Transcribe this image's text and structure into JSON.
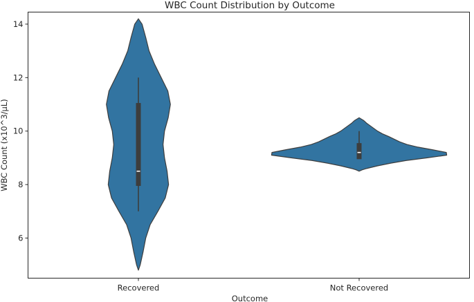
{
  "chart_data": {
    "type": "violin",
    "title": "WBC Count Distribution by Outcome",
    "xlabel": "Outcome",
    "ylabel": "WBC Count (x10^3/µL)",
    "categories": [
      "Recovered",
      "Not Recovered"
    ],
    "ylim": [
      4.5,
      14.45
    ],
    "yticks": [
      6,
      8,
      10,
      12,
      14
    ],
    "grid": false,
    "colors": {
      "violin_fill": "#3274a1",
      "outline": "#3d3d3d",
      "box": "#3d3d3d",
      "median": "#ffffff"
    },
    "series": [
      {
        "category": "Recovered",
        "density_profile": [
          [
            4.8,
            0.0
          ],
          [
            5.0,
            0.05
          ],
          [
            5.5,
            0.13
          ],
          [
            6.0,
            0.2
          ],
          [
            6.5,
            0.32
          ],
          [
            7.0,
            0.53
          ],
          [
            7.5,
            0.73
          ],
          [
            8.0,
            0.82
          ],
          [
            8.5,
            0.78
          ],
          [
            9.0,
            0.71
          ],
          [
            9.5,
            0.67
          ],
          [
            10.0,
            0.71
          ],
          [
            10.5,
            0.81
          ],
          [
            11.0,
            0.87
          ],
          [
            11.5,
            0.8
          ],
          [
            12.0,
            0.62
          ],
          [
            12.5,
            0.44
          ],
          [
            13.0,
            0.29
          ],
          [
            13.5,
            0.2
          ],
          [
            14.0,
            0.1
          ],
          [
            14.2,
            0.0
          ]
        ],
        "whisker": [
          7.0,
          12.0
        ],
        "q1": 7.95,
        "median": 8.5,
        "q3": 11.05
      },
      {
        "category": "Not Recovered",
        "density_profile": [
          [
            8.5,
            0.0
          ],
          [
            8.55,
            0.08
          ],
          [
            8.6,
            0.2
          ],
          [
            8.7,
            0.5
          ],
          [
            8.8,
            0.86
          ],
          [
            8.9,
            1.28
          ],
          [
            9.0,
            1.85
          ],
          [
            9.1,
            2.38
          ],
          [
            9.2,
            2.37
          ],
          [
            9.3,
            2.0
          ],
          [
            9.4,
            1.6
          ],
          [
            9.5,
            1.3
          ],
          [
            9.6,
            1.1
          ],
          [
            9.7,
            0.95
          ],
          [
            9.8,
            0.8
          ],
          [
            9.9,
            0.63
          ],
          [
            10.0,
            0.5
          ],
          [
            10.1,
            0.4
          ],
          [
            10.2,
            0.3
          ],
          [
            10.3,
            0.2
          ],
          [
            10.4,
            0.12
          ],
          [
            10.5,
            0.0
          ]
        ],
        "whisker": [
          9.0,
          10.0
        ],
        "q1": 8.95,
        "median": 9.2,
        "q3": 9.55
      }
    ]
  }
}
